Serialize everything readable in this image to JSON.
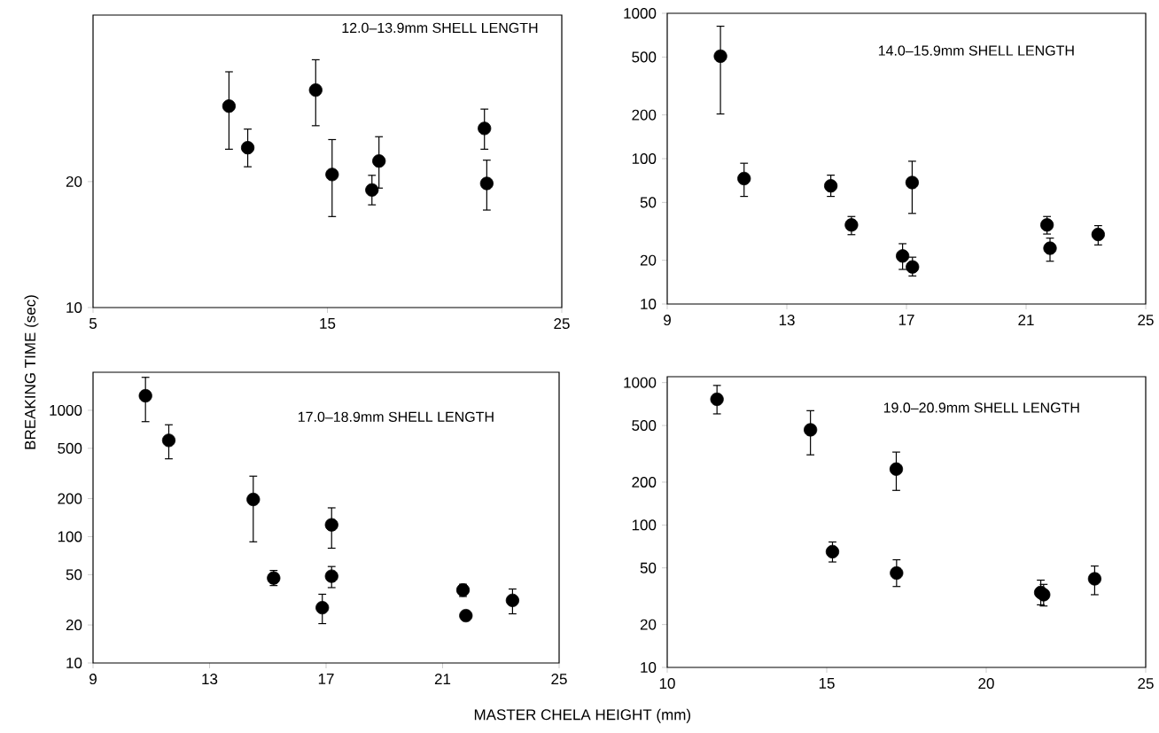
{
  "chart_data": [
    {
      "type": "scatter",
      "title": "12.0–13.9mm SHELL LENGTH",
      "log": "y",
      "marker": "circle",
      "xlim": [
        5,
        25
      ],
      "ylim": [
        10,
        50
      ],
      "xticks": [
        5,
        15,
        25
      ],
      "yticks": [
        10,
        20
      ],
      "x": [
        10.8,
        11.6,
        14.5,
        15.2,
        16.9,
        17.2,
        21.7,
        21.8
      ],
      "series": [
        {
          "color": "#000000",
          "values": [
            30.3,
            24.1,
            33.1,
            20.8,
            19.1,
            22.4,
            26.8,
            19.8
          ],
          "errors": [
            [
              23.9,
              36.6
            ],
            [
              21.7,
              26.7
            ],
            [
              27.2,
              39.1
            ],
            [
              16.5,
              25.2
            ],
            [
              17.6,
              20.7
            ],
            [
              19.3,
              25.6
            ],
            [
              23.9,
              29.8
            ],
            [
              17.1,
              22.5
            ]
          ]
        }
      ]
    },
    {
      "type": "scatter",
      "title": "14.0–15.9mm SHELL LENGTH",
      "log": "y",
      "marker": "circle",
      "xlim": [
        9,
        25
      ],
      "ylim": [
        10,
        1000
      ],
      "xticks": [
        9,
        13,
        17,
        21,
        25
      ],
      "yticks": [
        10,
        20,
        50,
        100,
        200,
        500,
        1000
      ],
      "x": [
        10.78,
        11.57,
        14.47,
        15.16,
        16.87,
        17.19,
        17.2,
        21.7,
        21.8,
        23.41
      ],
      "series": [
        {
          "color": "#000000",
          "values": [
            507,
            73,
            65,
            35,
            21.4,
            68.5,
            18,
            35,
            24.2,
            30.1
          ],
          "errors": [
            [
              203,
              815
            ],
            [
              55,
              93
            ],
            [
              55,
              77
            ],
            [
              30,
              40
            ],
            [
              17.3,
              26
            ],
            [
              42,
              96
            ],
            [
              15.6,
              21
            ],
            [
              30.3,
              40
            ],
            [
              19.7,
              28.4
            ],
            [
              25.5,
              34.6
            ]
          ]
        }
      ]
    },
    {
      "type": "scatter",
      "title": "17.0–18.9mm SHELL LENGTH",
      "xlabel": "MASTER CHELA HEIGHT (mm)",
      "ylabel": "BREAKING TIME (sec)",
      "log": "y",
      "marker": "circle",
      "xlim": [
        9,
        25
      ],
      "ylim": [
        10,
        2000
      ],
      "xticks": [
        9,
        13,
        17,
        21,
        25
      ],
      "yticks": [
        10,
        20,
        50,
        100,
        200,
        500,
        1000
      ],
      "x": [
        10.8,
        11.6,
        14.5,
        15.2,
        16.87,
        17.19,
        17.19,
        21.7,
        21.8,
        23.4
      ],
      "series": [
        {
          "color": "#000000",
          "values": [
            1303,
            578,
            197,
            47,
            27.4,
            124,
            48.6,
            37.8,
            23.7,
            31.3
          ],
          "errors": [
            [
              813,
              1823
            ],
            [
              413,
              768
            ],
            [
              91,
              301
            ],
            [
              41,
              54
            ],
            [
              20.5,
              35
            ],
            [
              81,
              169
            ],
            [
              39.5,
              58
            ],
            [
              33.6,
              42
            ],
            null,
            [
              24.5,
              38.5
            ]
          ]
        }
      ]
    },
    {
      "type": "scatter",
      "title": "19.0–20.9mm SHELL LENGTH",
      "log": "y",
      "marker": "circle",
      "xlim": [
        10,
        25
      ],
      "ylim": [
        10,
        1100
      ],
      "xticks": [
        10,
        15,
        20,
        25
      ],
      "yticks": [
        10,
        20,
        50,
        100,
        200,
        500,
        1000
      ],
      "x": [
        11.56,
        14.49,
        17.18,
        15.18,
        17.19,
        21.71,
        21.8,
        23.4
      ],
      "series": [
        {
          "color": "#000000",
          "values": [
            764,
            466,
            247,
            65,
            46,
            33.6,
            32.4,
            41.9
          ],
          "errors": [
            [
              603,
              955
            ],
            [
              311,
              635
            ],
            [
              175,
              325
            ],
            [
              55,
              76
            ],
            [
              37,
              57
            ],
            [
              27.5,
              41
            ],
            [
              27,
              38.3
            ],
            [
              32.4,
              51.5
            ]
          ]
        }
      ]
    }
  ]
}
